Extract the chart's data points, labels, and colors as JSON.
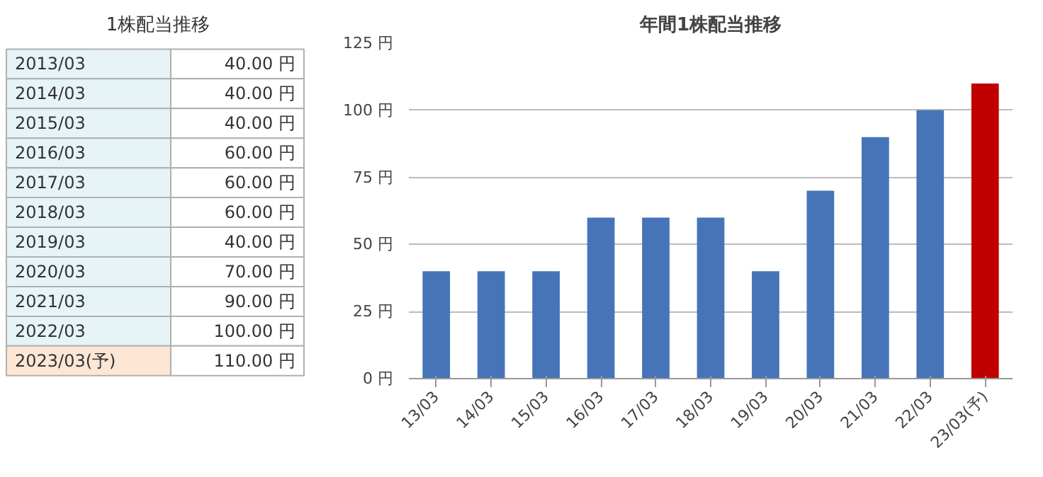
{
  "chart_data": [
    {
      "type": "other",
      "title": "1株配当推移",
      "categories": [
        "2013/03",
        "2014/03",
        "2015/03",
        "2016/03",
        "2017/03",
        "2018/03",
        "2019/03",
        "2020/03",
        "2021/03",
        "2022/03",
        "2023/03(予)"
      ],
      "values": [
        40,
        40,
        40,
        60,
        60,
        60,
        40,
        70,
        90,
        100,
        110
      ],
      "value_labels": [
        "40.00 円",
        "40.00 円",
        "40.00 円",
        "60.00 円",
        "60.00 円",
        "60.00 円",
        "40.00 円",
        "70.00 円",
        "90.00 円",
        "100.00 円",
        "110.00 円"
      ]
    },
    {
      "type": "bar",
      "title": "年間1株配当推移",
      "categories": [
        "13/03",
        "14/03",
        "15/03",
        "16/03",
        "17/03",
        "18/03",
        "19/03",
        "20/03",
        "21/03",
        "22/03",
        "23/03(予)"
      ],
      "values": [
        40,
        40,
        40,
        60,
        60,
        60,
        40,
        70,
        90,
        100,
        110
      ],
      "colors": [
        "#4674b8",
        "#4674b8",
        "#4674b8",
        "#4674b8",
        "#4674b8",
        "#4674b8",
        "#4674b8",
        "#4674b8",
        "#4674b8",
        "#4674b8",
        "#c00000"
      ],
      "ylim": [
        0,
        125
      ],
      "yticks": [
        {
          "value": 0,
          "label": "0 円"
        },
        {
          "value": 25,
          "label": "25 円"
        },
        {
          "value": 50,
          "label": "50 円"
        },
        {
          "value": 75,
          "label": "75 円"
        },
        {
          "value": 100,
          "label": "100 円"
        },
        {
          "value": 125,
          "label": "125 円"
        }
      ],
      "grid": "y"
    }
  ]
}
